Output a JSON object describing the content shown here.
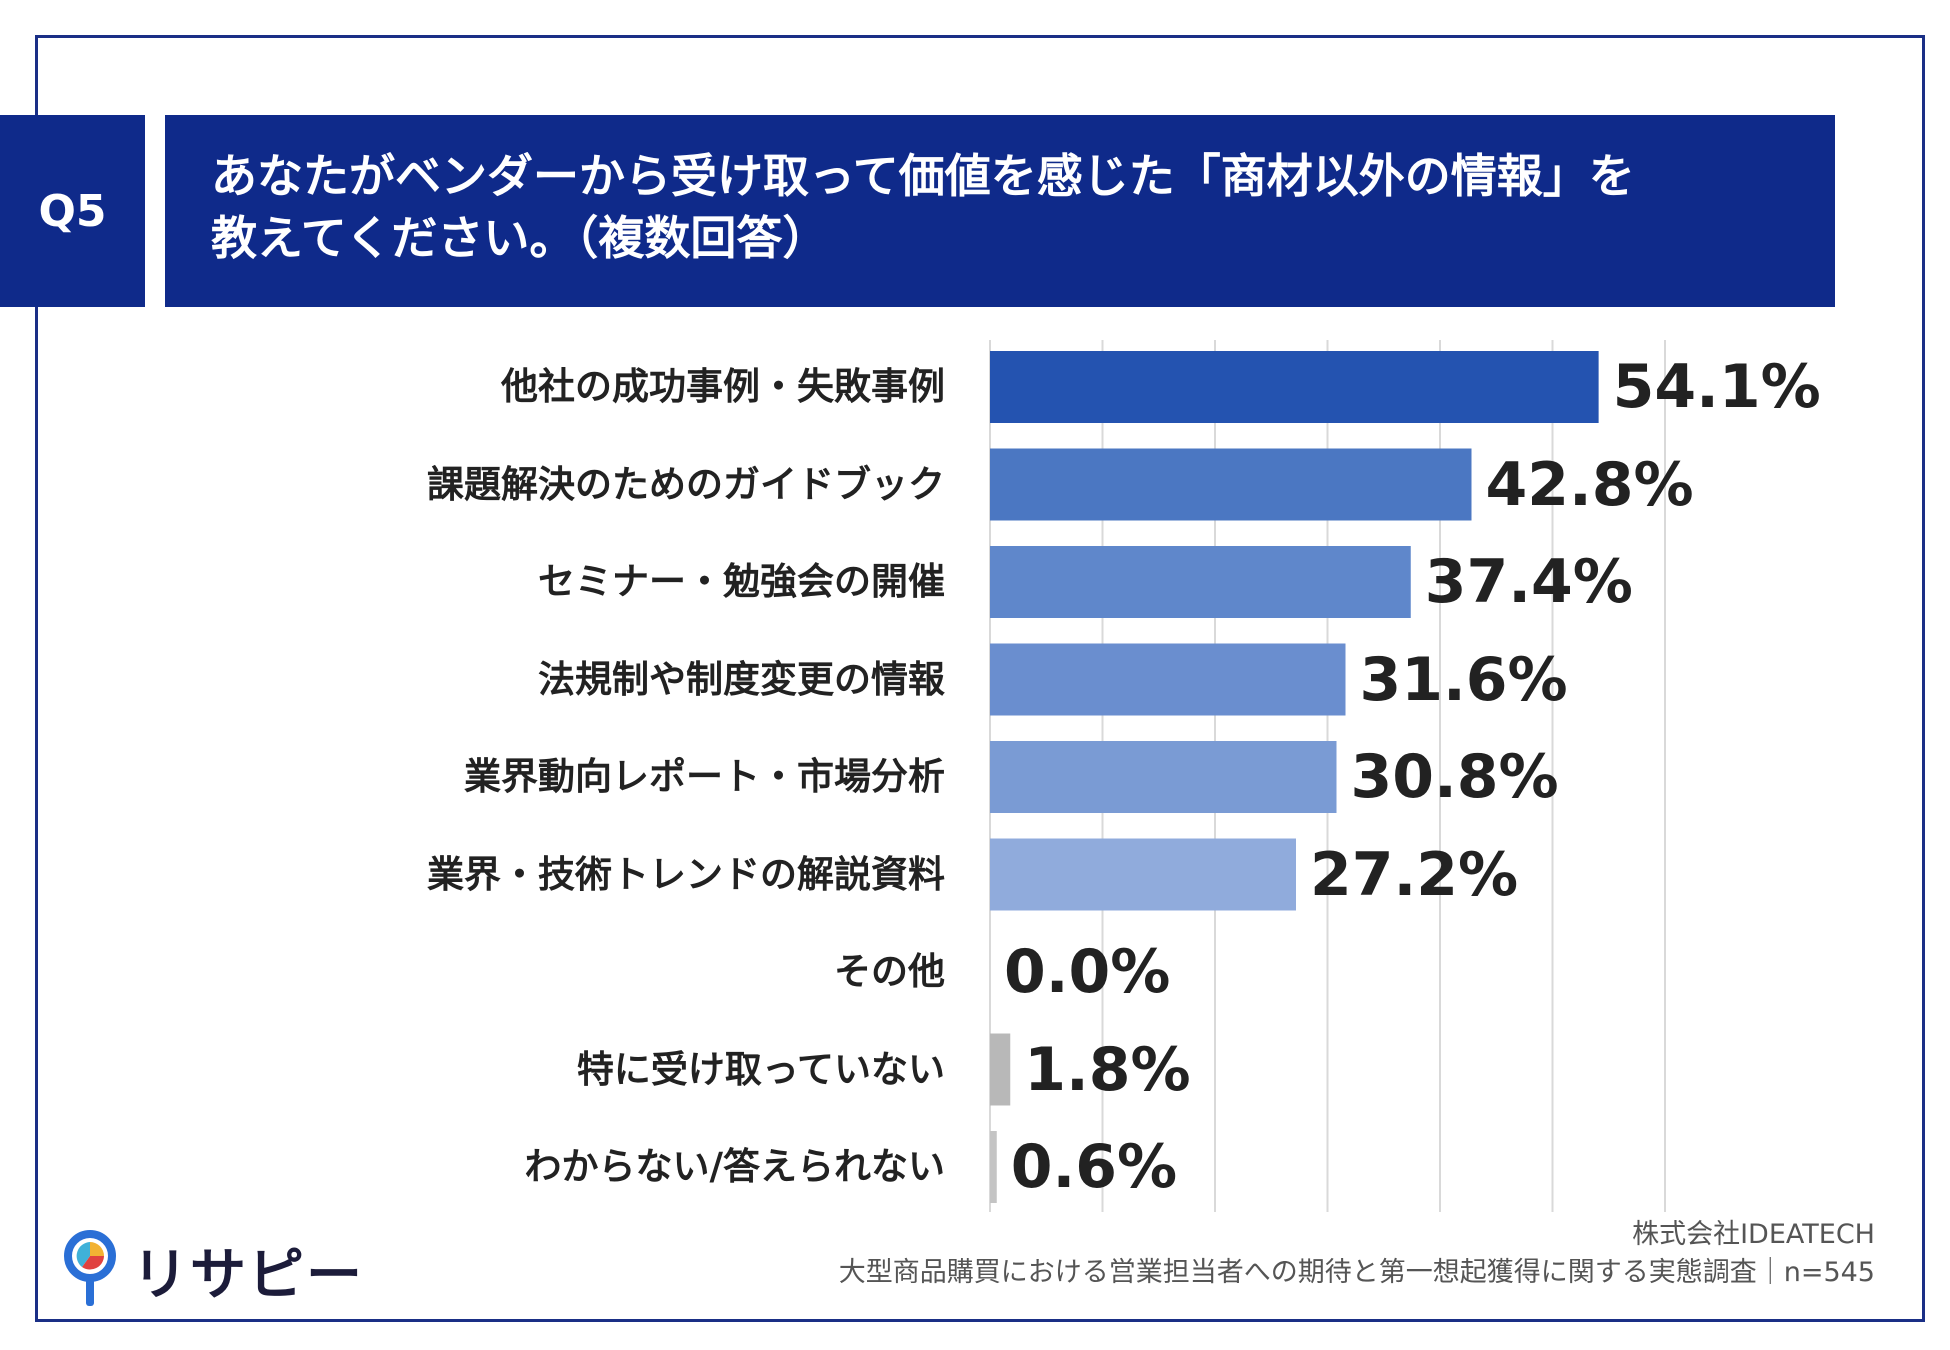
{
  "header": {
    "q_label": "Q5",
    "title_line1": "あなたがベンダーから受け取って価値を感じた「商材以外の情報」を",
    "title_line2": "教えてください。（複数回答）"
  },
  "chart_data": {
    "type": "bar",
    "orientation": "horizontal",
    "categories": [
      "他社の成功事例・失敗事例",
      "課題解決のためのガイドブック",
      "セミナー・勉強会の開催",
      "法規制や制度変更の情報",
      "業界動向レポート・市場分析",
      "業界・技術トレンドの解説資料",
      "その他",
      "特に受け取っていない",
      "わからない/答えられない"
    ],
    "values": [
      54.1,
      42.8,
      37.4,
      31.6,
      30.8,
      27.2,
      0.0,
      1.8,
      0.6
    ],
    "value_labels": [
      "54.1%",
      "42.8%",
      "37.4%",
      "31.6%",
      "30.8%",
      "27.2%",
      "0.0%",
      "1.8%",
      "0.6%"
    ],
    "bar_colors": [
      "#2453b0",
      "#4b77c2",
      "#5f87cb",
      "#6a8ecf",
      "#7a9bd4",
      "#90abdc",
      "#8f8f8f",
      "#b8b8b8",
      "#c4c4c4"
    ],
    "xlim": [
      0,
      60
    ],
    "grid": true,
    "title": ""
  },
  "footer": {
    "company": "株式会社IDEATECH",
    "survey": "大型商品購買における営業担当者への期待と第一想起獲得に関する実態調査｜n=545",
    "logo_text": "リサピー"
  }
}
